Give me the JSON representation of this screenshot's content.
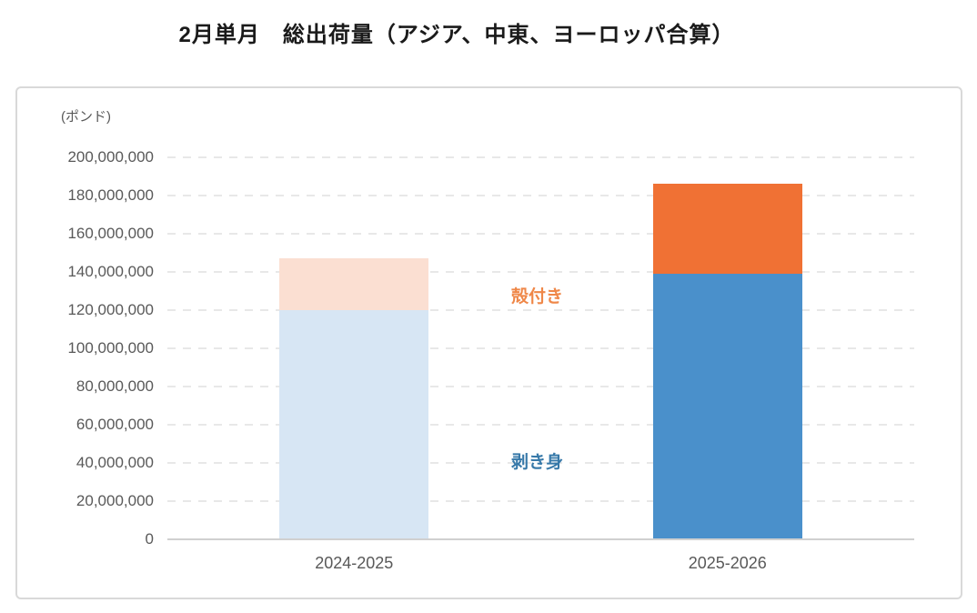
{
  "chart_data": {
    "type": "bar",
    "stacked": true,
    "title": "2月単月　総出荷量（アジア、中東、ヨーロッパ合算）",
    "unit_label": "(ポンド)",
    "categories": [
      "2024-2025",
      "2025-2026"
    ],
    "series": [
      {
        "name": "剥き身",
        "values": [
          120000000,
          139000000
        ],
        "colors_by_category": [
          "#D7E6F4",
          "#4A90CB"
        ]
      },
      {
        "name": "殻付き",
        "values": [
          27000000,
          47000000
        ],
        "colors_by_category": [
          "#FBDFD2",
          "#F07134"
        ]
      }
    ],
    "ylim": [
      0,
      200000000
    ],
    "ytick_interval": 20000000,
    "grid": {
      "horizontal": true,
      "style": "dashed",
      "color": "#e8e8e8"
    },
    "axis_line_color": "#d0d0d0",
    "tick_label_color": "#595959",
    "legend_position": "inline-annotations",
    "annotations": [
      {
        "text": "殻付き",
        "series": "殻付き",
        "color": "#EF8748"
      },
      {
        "text": "剥き身",
        "series": "剥き身",
        "color": "#3779A9"
      }
    ]
  }
}
